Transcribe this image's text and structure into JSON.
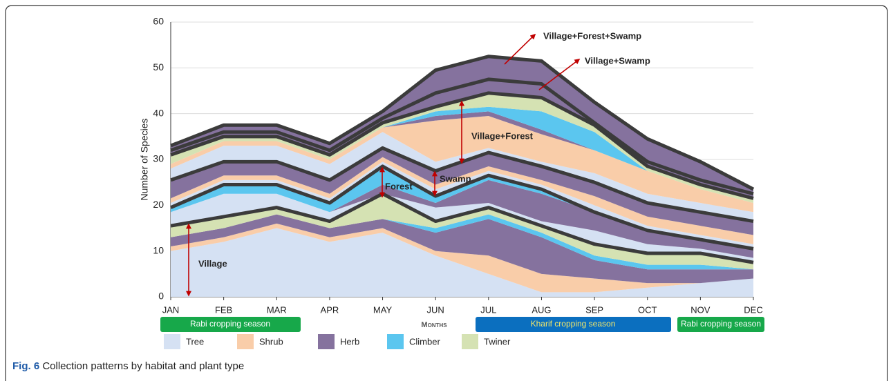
{
  "chart_data": {
    "type": "area",
    "y_axis_label": "Number of Species",
    "x_axis_label": "Months",
    "categories": [
      "JAN",
      "FEB",
      "MAR",
      "APR",
      "MAY",
      "JUN",
      "JUL",
      "AUG",
      "SEP",
      "OCT",
      "NOV",
      "DEC"
    ],
    "ylim": [
      0,
      60
    ],
    "yticks": [
      0,
      10,
      20,
      30,
      40,
      50,
      60
    ],
    "grid": true,
    "legend": [
      {
        "name": "Tree",
        "color": "#d5e1f3"
      },
      {
        "name": "Shrub",
        "color": "#f9cda9"
      },
      {
        "name": "Herb",
        "color": "#85729e"
      },
      {
        "name": "Climber",
        "color": "#5bc6ef"
      },
      {
        "name": "Twiner",
        "color": "#d5e2b3"
      }
    ],
    "groups": [
      {
        "name": "Village",
        "series": [
          {
            "color": "#d5e1f3",
            "values": [
              10,
              12,
              15,
              12,
              14,
              9,
              5,
              1,
              1,
              2,
              3,
              4
            ]
          },
          {
            "color": "#f9cda9",
            "values": [
              1,
              1,
              1,
              1,
              1,
              1,
              4,
              4,
              3,
              1,
              0,
              0
            ]
          },
          {
            "color": "#85729e",
            "values": [
              2,
              2,
              2,
              2,
              2,
              4,
              8,
              8,
              4,
              3,
              3,
              2
            ]
          },
          {
            "color": "#5bc6ef",
            "values": [
              0,
              0,
              0,
              0,
              0,
              1,
              1,
              1,
              1,
              1,
              1,
              0
            ]
          },
          {
            "color": "#d5e2b3",
            "values": [
              2.5,
              2.5,
              1.5,
              1.5,
              5.5,
              1.5,
              1.5,
              1.5,
              2.5,
              2.5,
              2.5,
              1.5
            ]
          }
        ]
      },
      {
        "name": "Forest",
        "series": [
          {
            "color": "#d5e1f3",
            "values": [
              3,
              5,
              3,
              2,
              0,
              3,
              1,
              1,
              3,
              2,
              1,
              1
            ]
          },
          {
            "color": "#85729e",
            "values": [
              0,
              0,
              0,
              0,
              2,
              1,
              5,
              6,
              4,
              3,
              2,
              2
            ]
          },
          {
            "color": "#5bc6ef",
            "values": [
              1,
              2,
              2,
              2,
              4,
              1.5,
              1,
              1,
              0,
              0,
              0,
              0
            ]
          }
        ]
      },
      {
        "name": "Swamp",
        "series": [
          {
            "color": "#d5e1f3",
            "values": [
              1,
              1,
              1,
              1,
              1,
              1.5,
              1,
              1,
              1.5,
              1,
              1,
              1
            ]
          },
          {
            "color": "#f9cda9",
            "values": [
              1,
              1,
              1,
              1,
              1,
              1,
              1,
              1,
              2,
              2,
              2,
              2
            ]
          },
          {
            "color": "#85729e",
            "values": [
              4,
              3,
              3,
              3,
              2,
              3,
              3,
              3,
              3,
              3,
              3,
              3
            ]
          }
        ]
      },
      {
        "name": "Village+Forest",
        "series": [
          {
            "color": "#d5e1f3",
            "values": [
              2.5,
              3.5,
              3.5,
              3.5,
              3.5,
              2,
              1,
              1,
              2,
              2,
              2,
              2
            ]
          },
          {
            "color": "#f9cda9",
            "values": [
              1,
              1,
              1,
              1,
              1,
              9,
              7,
              6,
              5,
              5,
              3,
              2
            ]
          },
          {
            "color": "#85729e",
            "values": [
              0,
              0,
              0,
              0,
              0,
              1,
              1,
              1,
              0,
              0,
              0,
              0
            ]
          },
          {
            "color": "#5bc6ef",
            "values": [
              0,
              0,
              0,
              0,
              0,
              1,
              1,
              4,
              4,
              0,
              0,
              0
            ]
          },
          {
            "color": "#d5e2b3",
            "values": [
              2,
              1,
              1,
              1,
              1,
              1,
              3,
              3,
              1.5,
              1,
              1,
              1
            ]
          }
        ]
      },
      {
        "name": "Village+Swamp",
        "series": [
          {
            "color": "#85729e",
            "values": [
              1,
              1,
              1,
              1,
              1,
              3,
              3,
              3,
              0.5,
              1,
              1,
              1
            ]
          }
        ]
      },
      {
        "name": "Village+Forest+Swamp",
        "series": [
          {
            "color": "#85729e",
            "values": [
              1,
              1.5,
              1.5,
              1.5,
              1.5,
              5,
              5,
              5,
              4.5,
              5,
              4,
              1
            ]
          }
        ]
      }
    ],
    "seasons": [
      "Rabi cropping season",
      "Kharif cropping season",
      "Rabi cropping season"
    ],
    "caption_label": "Fig. 6",
    "caption": "Collection patterns by habitat and plant type"
  }
}
